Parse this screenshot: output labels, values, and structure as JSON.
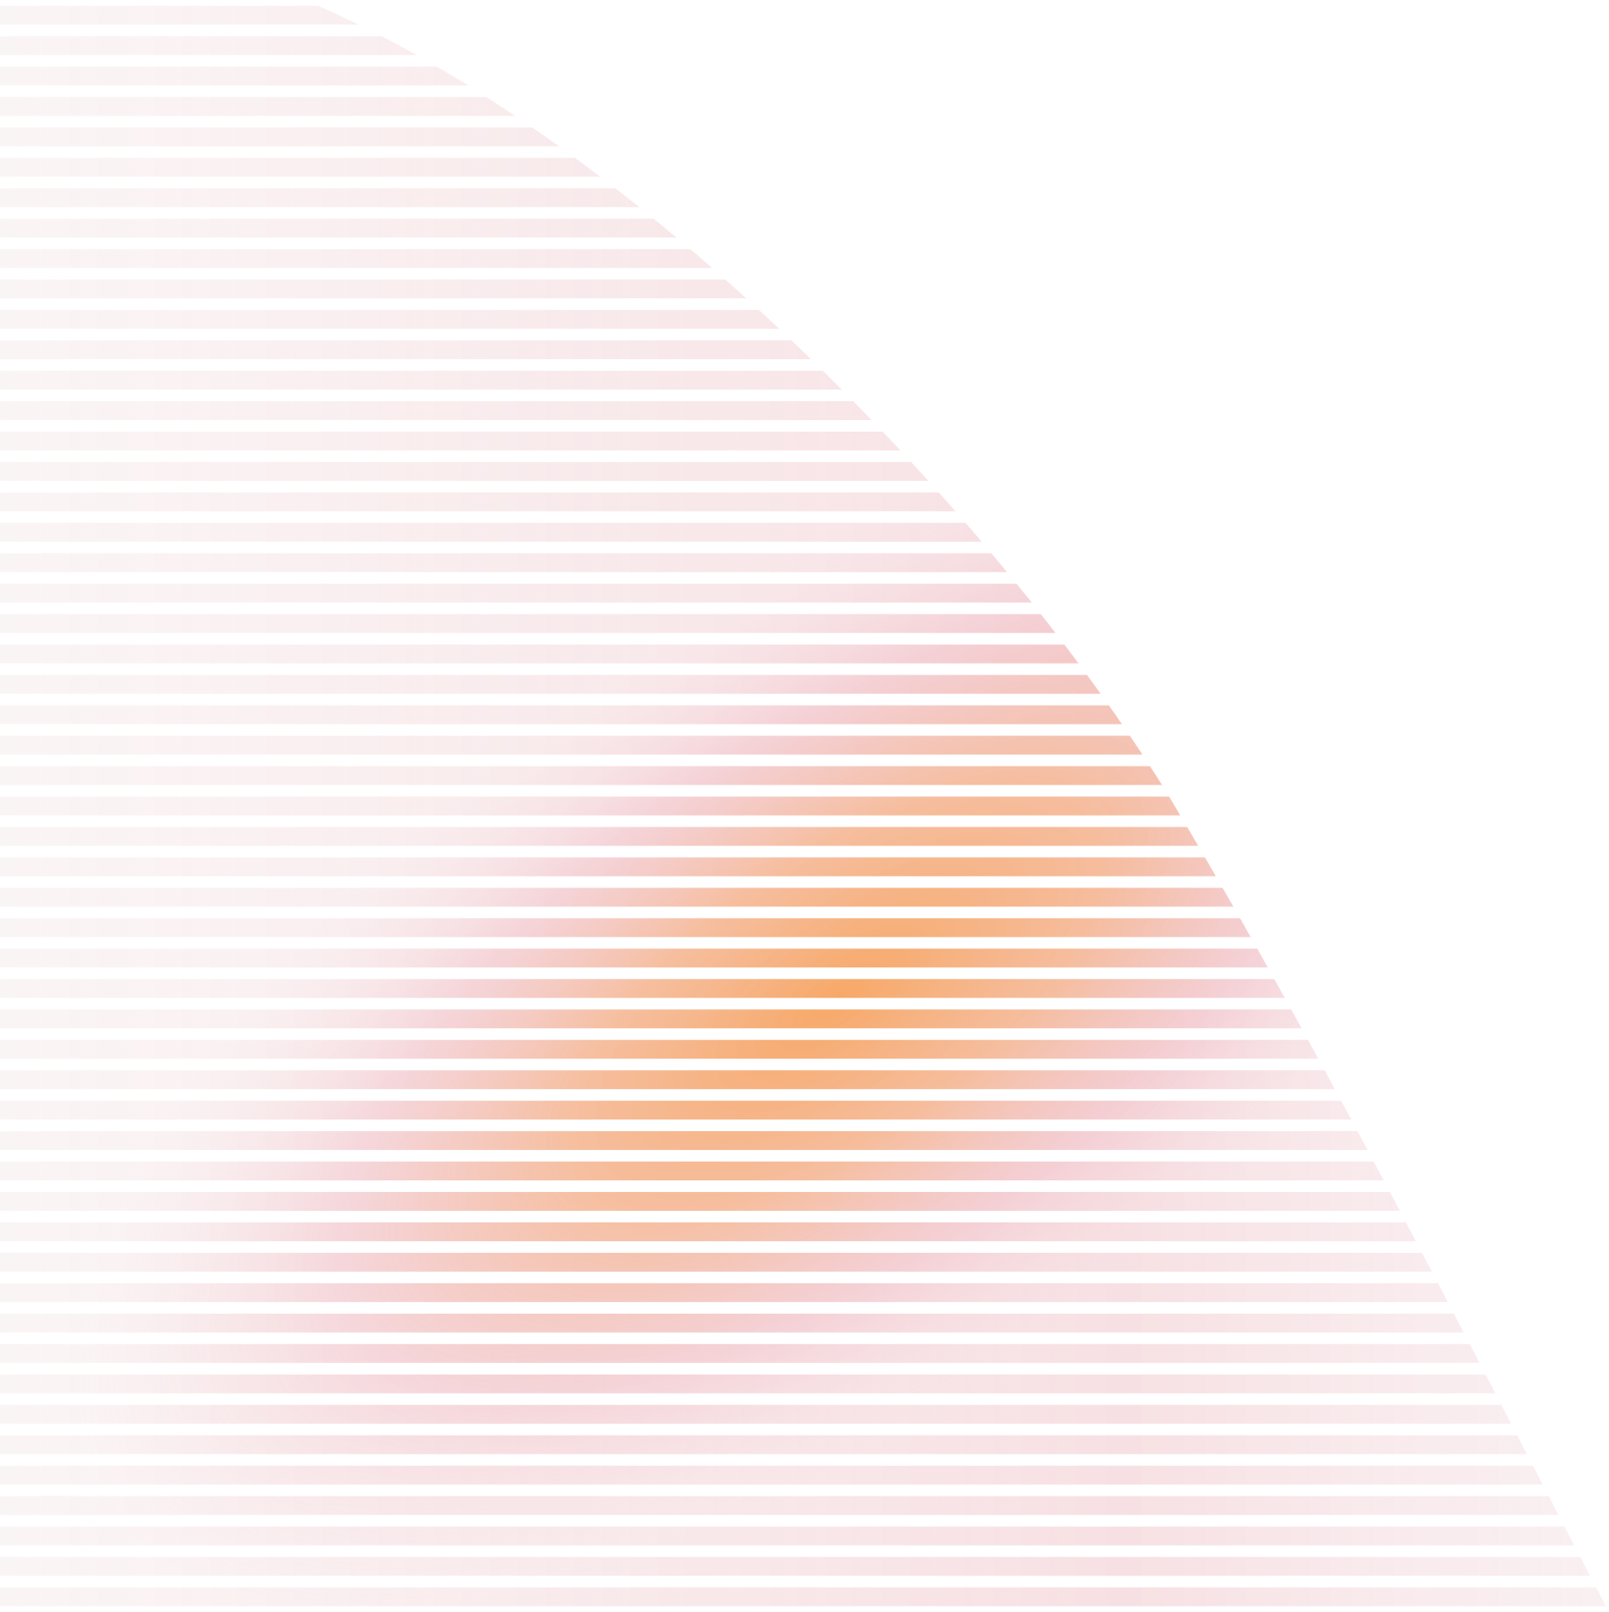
{
  "artwork": {
    "description_tag": "decorative-gradient-stripes",
    "stripe_count": 53,
    "colors": {
      "background": "#ffffff",
      "orange": "#f7a561",
      "peach": "#f5b48c",
      "pink": "#f0b8c0",
      "fade": "#ffffff"
    }
  }
}
